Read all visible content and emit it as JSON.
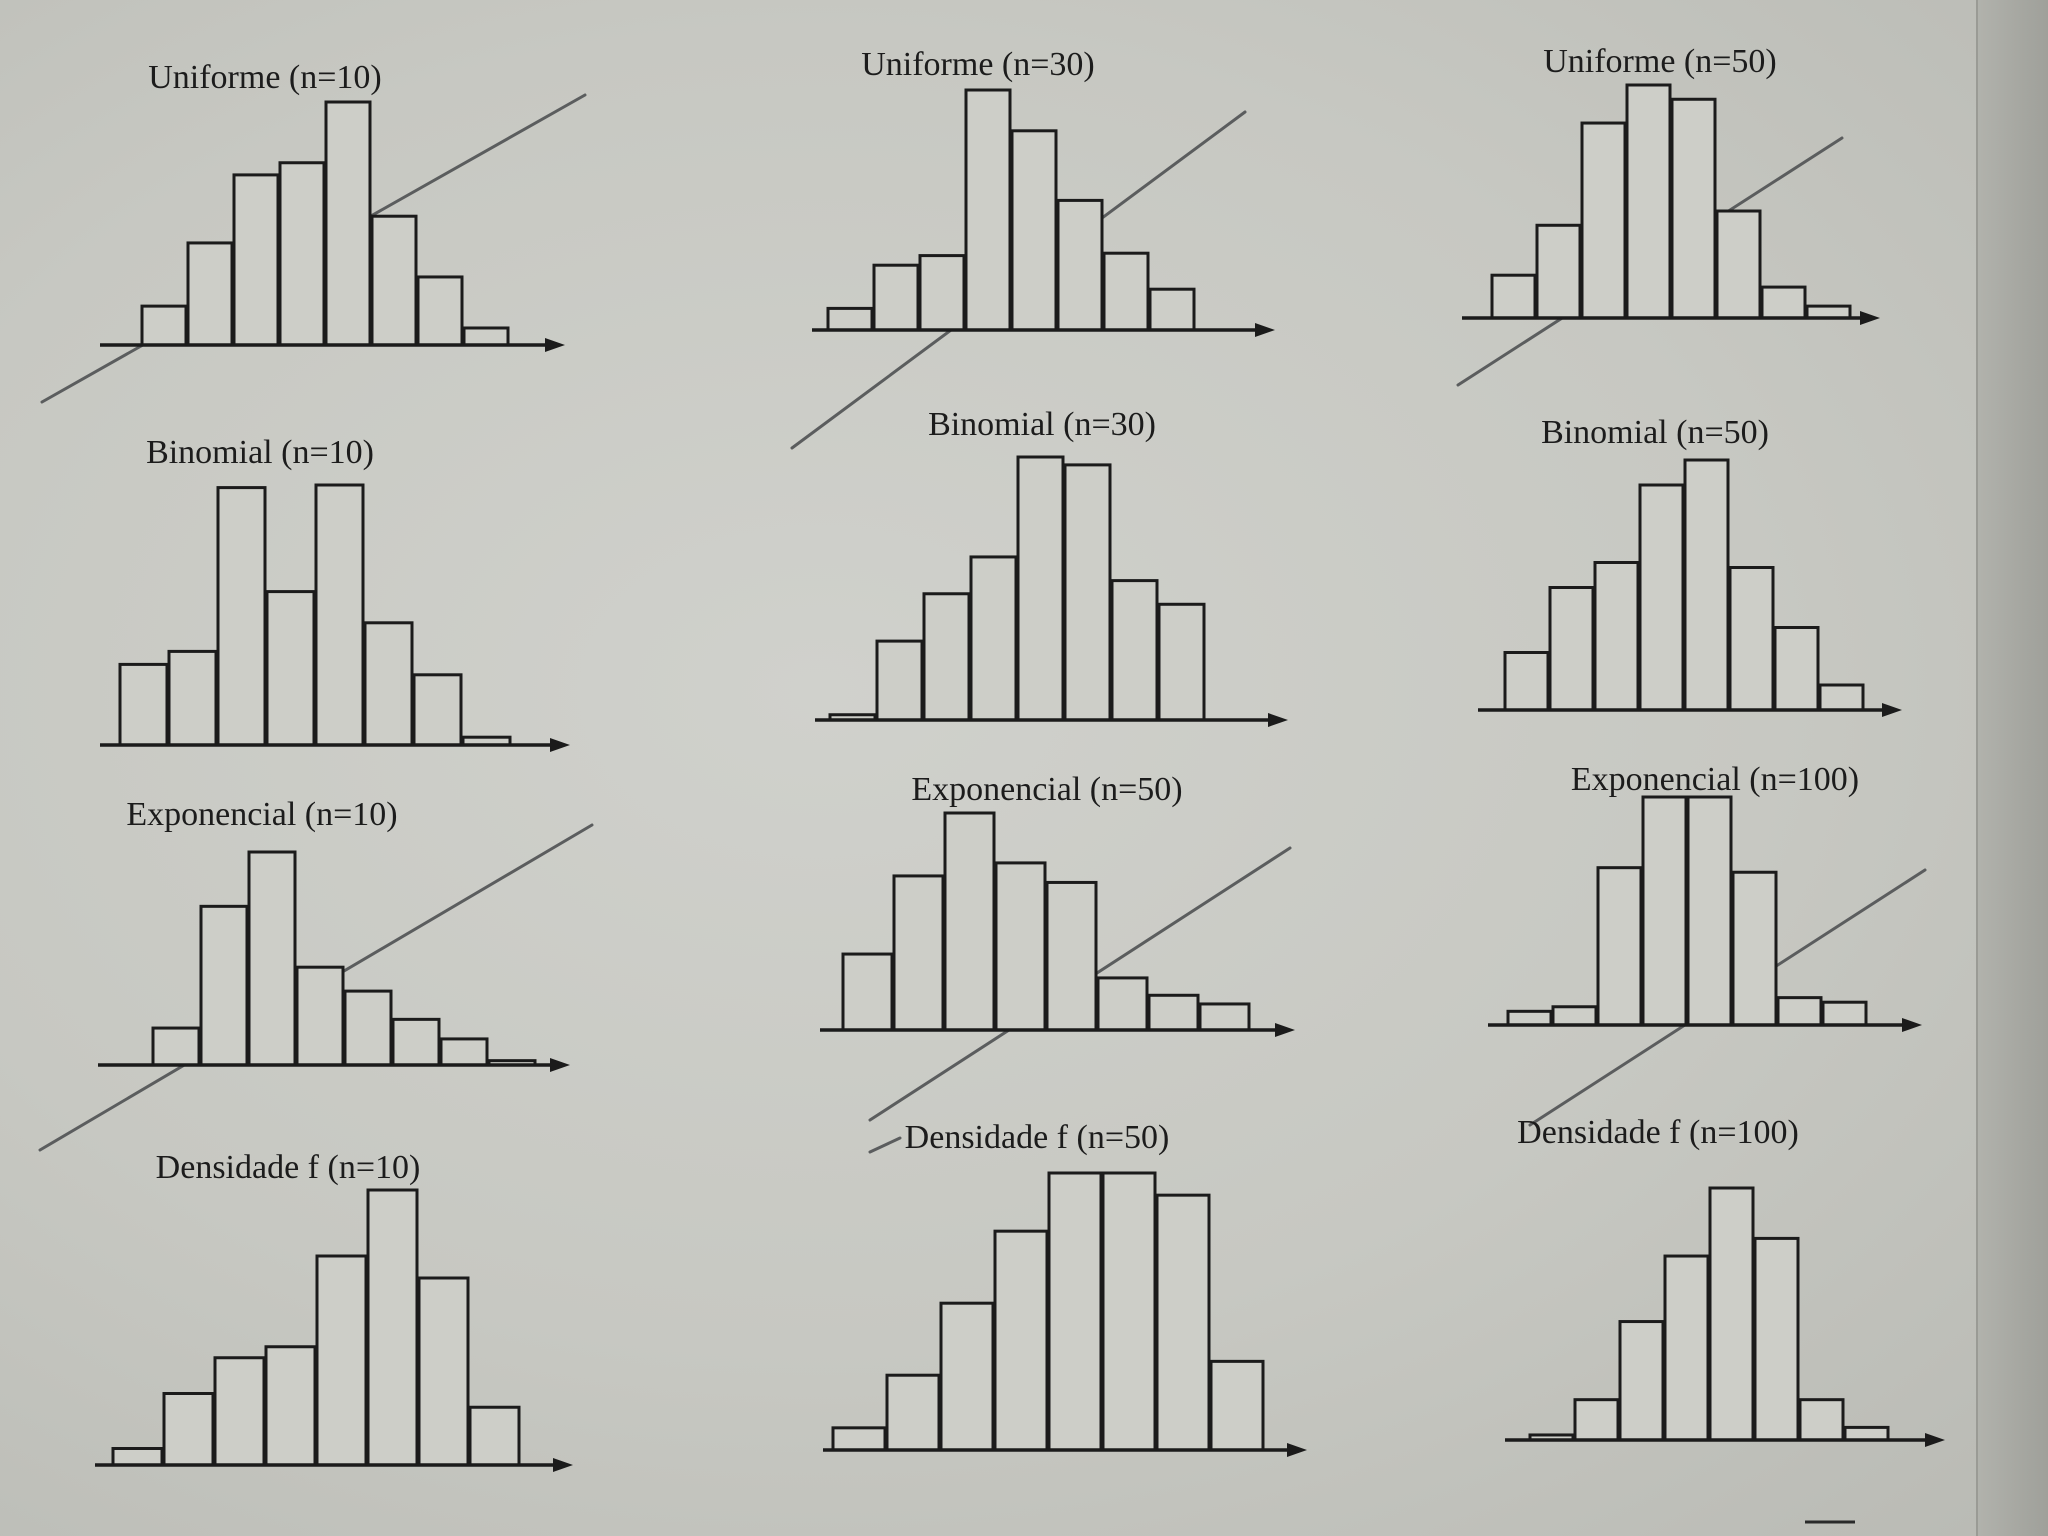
{
  "colors": {
    "paper": "#c9cac4",
    "ink": "#1b1b1b",
    "bar_fill": "#cdcec8",
    "pen": "#5b5d5e"
  },
  "chart_data": [
    {
      "type": "bar",
      "title": "Uniforme (n=10)",
      "values": [
        1.6,
        4.2,
        7.0,
        7.5,
        10.0,
        5.3,
        2.8,
        0.7
      ]
    },
    {
      "type": "bar",
      "title": "Uniforme (n=30)",
      "values": [
        0.9,
        2.7,
        3.1,
        10.0,
        8.3,
        5.4,
        3.2,
        1.7
      ]
    },
    {
      "type": "bar",
      "title": "Uniforme (n=50)",
      "values": [
        1.8,
        3.9,
        8.2,
        9.8,
        9.2,
        4.5,
        1.3,
        0.5
      ]
    },
    {
      "type": "bar",
      "title": "Binomial (n=10)",
      "values": [
        3.1,
        3.6,
        9.9,
        5.9,
        10.0,
        4.7,
        2.7,
        0.3
      ]
    },
    {
      "type": "bar",
      "title": "Binomial (n=30)",
      "values": [
        0.2,
        3.0,
        4.8,
        6.2,
        10.0,
        9.7,
        5.3,
        4.4
      ]
    },
    {
      "type": "bar",
      "title": "Binomial (n=50)",
      "values": [
        2.3,
        4.9,
        5.9,
        9.0,
        10.0,
        5.7,
        3.3,
        1.0
      ]
    },
    {
      "type": "bar",
      "title": "Exponencial (n=10)",
      "values": [
        1.7,
        7.3,
        9.8,
        4.5,
        3.4,
        2.1,
        1.2,
        0.2
      ]
    },
    {
      "type": "bar",
      "title": "Exponencial (n=50)",
      "values": [
        3.5,
        7.1,
        10.0,
        7.7,
        6.8,
        2.4,
        1.6,
        1.2
      ]
    },
    {
      "type": "bar",
      "title": "Exponencial (n=100)",
      "values": [
        0.6,
        0.8,
        6.9,
        10.0,
        10.0,
        6.7,
        1.2,
        1.0
      ]
    },
    {
      "type": "bar",
      "title": "Densidade f (n=10)",
      "values": [
        0.6,
        2.6,
        3.9,
        4.3,
        7.6,
        10.0,
        6.8,
        2.1
      ]
    },
    {
      "type": "bar",
      "title": "Densidade f (n=50)",
      "values": [
        0.8,
        2.7,
        5.3,
        7.9,
        10.0,
        10.0,
        9.2,
        3.2
      ]
    },
    {
      "type": "bar",
      "title": "Densidade f (n=100)",
      "values": [
        0.2,
        1.6,
        4.7,
        7.3,
        10.0,
        8.0,
        1.6,
        0.5
      ]
    }
  ]
}
